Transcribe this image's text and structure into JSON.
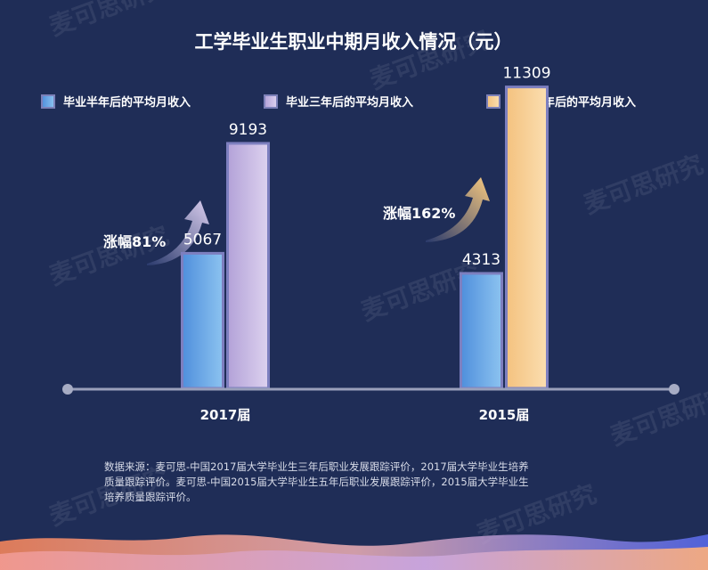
{
  "watermark": "麦可思研究",
  "chart_data": {
    "type": "bar",
    "title": "工学毕业生职业中期月收入情况（元）",
    "categories": [
      "2017届",
      "2015届"
    ],
    "series": [
      {
        "name": "毕业半年后的平均月收入",
        "color": "#6aa9e6",
        "values": [
          5067,
          4313
        ]
      },
      {
        "name": "毕业三年后的平均月收入",
        "color": "#c9b9e0",
        "values": [
          9193,
          null
        ]
      },
      {
        "name": "毕业五年后的平均月收入",
        "color": "#f6cd8e",
        "values": [
          null,
          11309
        ]
      }
    ],
    "growth_labels": [
      "涨幅81%",
      "涨幅162%"
    ],
    "ylim": [
      0,
      12500
    ],
    "legend": "top",
    "grid": false
  },
  "source": "数据来源：麦可思-中国2017届大学毕业生三年后职业发展跟踪评价，2017届大学毕业生培养质量跟踪评价。麦可思-中国2015届大学毕业生五年后职业发展跟踪评价，2015届大学毕业生培养质量跟踪评价。"
}
